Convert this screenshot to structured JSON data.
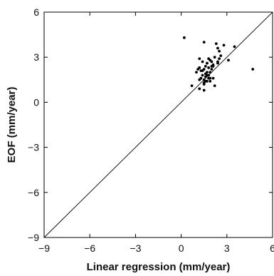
{
  "chart_data": {
    "type": "scatter",
    "xlabel": "Linear regression (mm/year)",
    "ylabel": "EOF (mm/year)",
    "xlim": [
      -9,
      6
    ],
    "ylim": [
      -9,
      6
    ],
    "xticks": [
      -9,
      -6,
      -3,
      0,
      3,
      6
    ],
    "yticks": [
      -9,
      -6,
      -3,
      0,
      3,
      6
    ],
    "xtick_labels": [
      "−9",
      "−6",
      "−3",
      "0",
      "3",
      "6"
    ],
    "ytick_labels": [
      "−9",
      "−6",
      "−3",
      "0",
      "3",
      "6"
    ],
    "reference_line": {
      "x": [
        -9,
        6
      ],
      "y": [
        -9,
        6
      ]
    },
    "grid": false,
    "series": [
      {
        "x": [
          0.2,
          1.5,
          2.3,
          2.8,
          2.4,
          2.5,
          3.5,
          4.7,
          3.1,
          2.2,
          2.6,
          2.5,
          2.4,
          1.9,
          1.8,
          1.7,
          2.0,
          2.1,
          1.2,
          1.4,
          1.7,
          2.0,
          1.8,
          1.6,
          1.5,
          1.3,
          1.1,
          1.0,
          1.2,
          1.4,
          1.6,
          1.7,
          1.8,
          1.9,
          2.0,
          2.1,
          1.4,
          1.6,
          1.5,
          1.7,
          1.3,
          1.5,
          1.6,
          1.9,
          1.7,
          1.2,
          1.5,
          1.9,
          2.2,
          0.7,
          1.2,
          1.5,
          1.8,
          2.1,
          2.4
        ],
        "y": [
          4.3,
          4.0,
          3.9,
          3.8,
          3.6,
          3.4,
          3.7,
          2.2,
          2.8,
          3.0,
          3.1,
          2.9,
          2.7,
          2.8,
          2.9,
          2.6,
          2.7,
          2.5,
          2.9,
          2.7,
          2.6,
          2.4,
          2.3,
          2.4,
          2.2,
          2.1,
          2.2,
          2.0,
          2.3,
          2.1,
          1.9,
          2.0,
          1.8,
          2.0,
          2.2,
          1.6,
          1.8,
          1.7,
          1.5,
          1.4,
          1.6,
          1.3,
          1.4,
          1.6,
          1.8,
          1.5,
          1.2,
          1.4,
          1.1,
          1.1,
          0.9,
          0.8,
          1.6,
          2.4,
          2.6
        ]
      }
    ]
  }
}
